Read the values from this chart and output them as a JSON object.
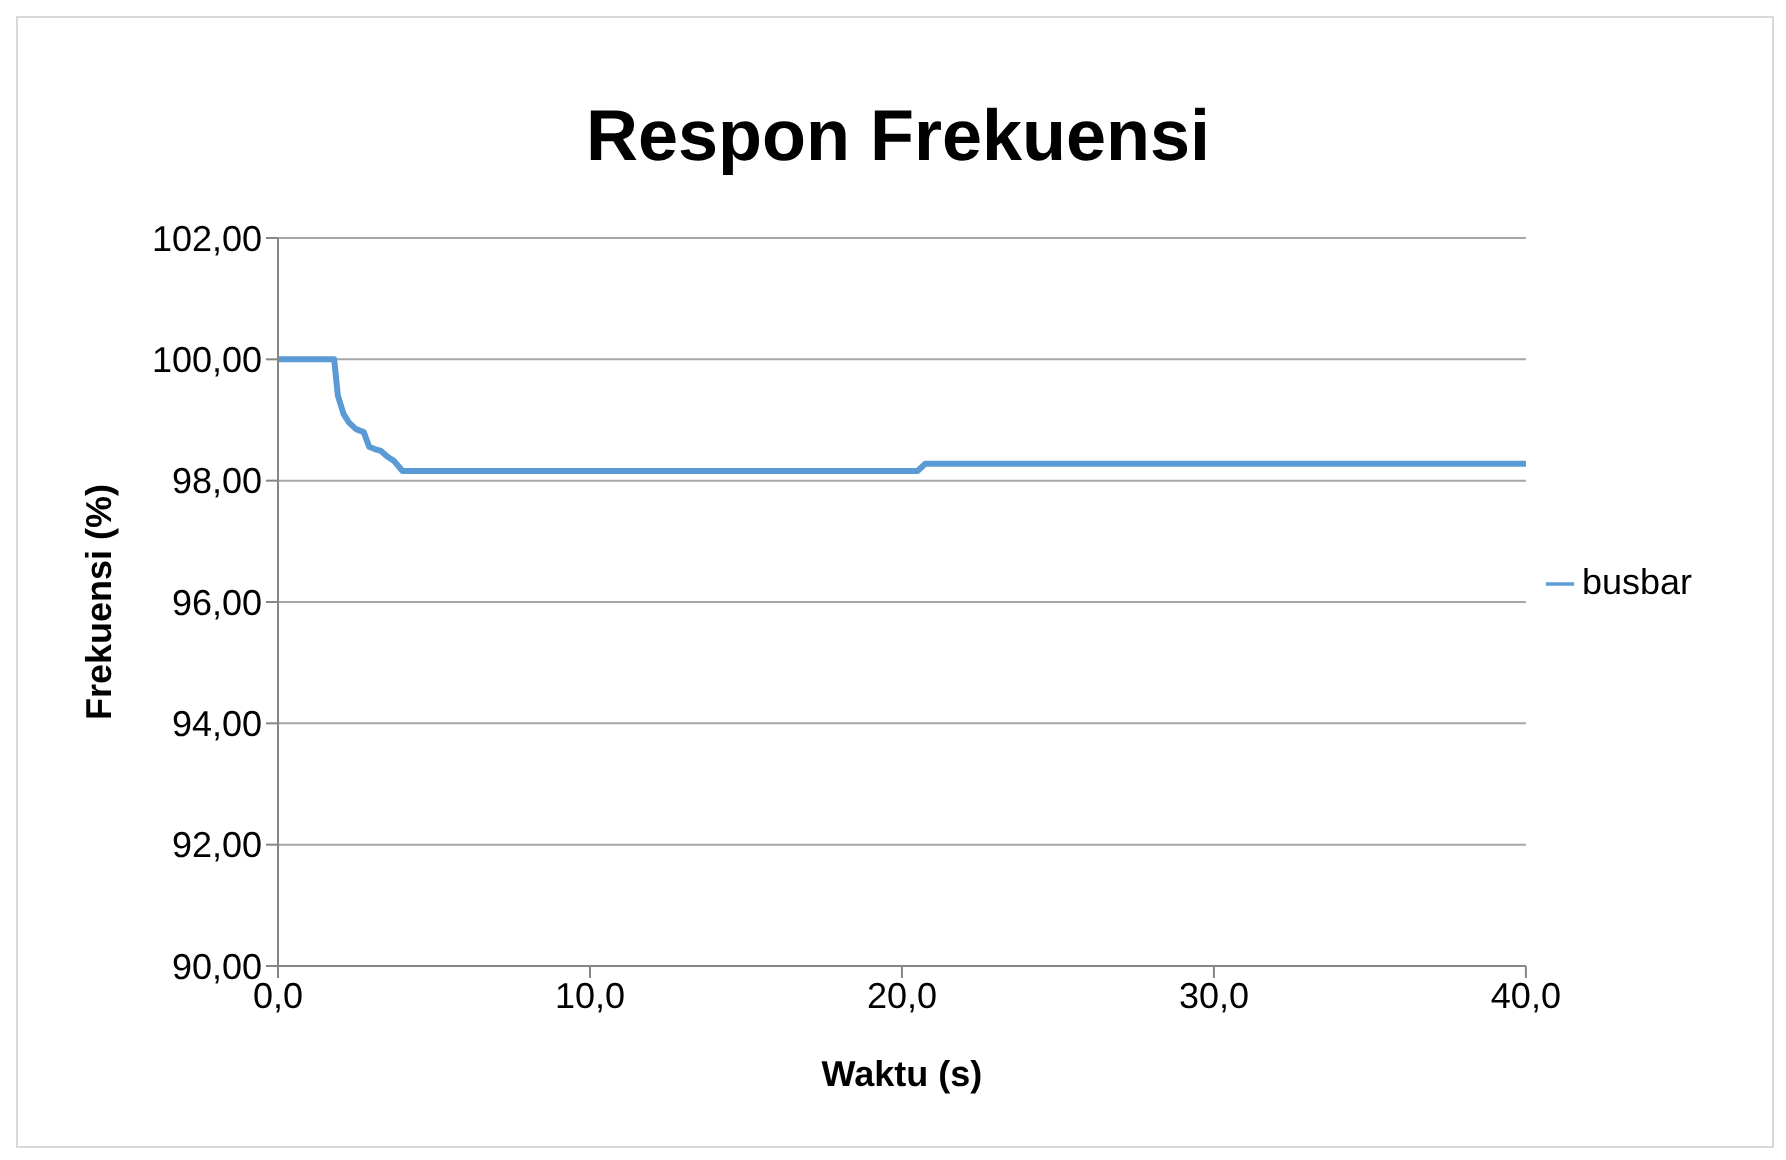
{
  "chart_data": {
    "type": "line",
    "title": "Respon Frekuensi",
    "xlabel": "Waktu (s)",
    "ylabel": "Frekuensi (%)",
    "x": [
      0,
      1.8,
      1.92,
      2.1,
      2.27,
      2.5,
      2.75,
      2.92,
      3.1,
      3.3,
      3.5,
      3.71,
      3.99,
      10,
      20.5,
      20.75,
      30,
      40
    ],
    "series": [
      {
        "name": "busbar",
        "color": "#5b9bd5",
        "values": [
          100,
          100,
          99.4,
          99.1,
          98.96,
          98.85,
          98.8,
          98.56,
          98.52,
          98.49,
          98.4,
          98.33,
          98.16,
          98.16,
          98.16,
          98.28,
          98.28,
          98.28
        ]
      }
    ],
    "xlim": [
      0,
      40
    ],
    "xticks": [
      {
        "value": 0,
        "label": "0,0"
      },
      {
        "value": 10,
        "label": "10,0"
      },
      {
        "value": 20,
        "label": "20,0"
      },
      {
        "value": 30,
        "label": "30,0"
      },
      {
        "value": 40,
        "label": "40,0"
      }
    ],
    "ylim": [
      90,
      102
    ],
    "yticks": [
      {
        "value": 90,
        "label": "90,00"
      },
      {
        "value": 92,
        "label": "92,00"
      },
      {
        "value": 94,
        "label": "94,00"
      },
      {
        "value": 96,
        "label": "96,00"
      },
      {
        "value": 98,
        "label": "98,00"
      },
      {
        "value": 100,
        "label": "100,00"
      },
      {
        "value": 102,
        "label": "102,00"
      }
    ],
    "grid": "y",
    "legend": "right",
    "marker": "none",
    "line_style": "solid"
  }
}
